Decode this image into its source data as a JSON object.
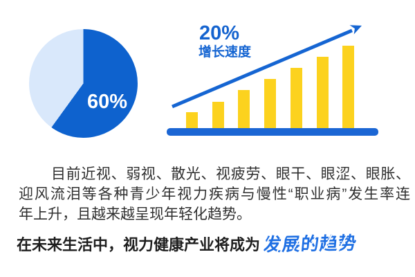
{
  "colors": {
    "pie_main": "#0e62ce",
    "pie_rest": "#d9e8fb",
    "bar_yellow": "#fcd21e",
    "baseline_blue": "#1b66d4",
    "arrow_blue": "#1565d2",
    "rate_text_blue": "#1463cf",
    "headline_black": "#1d1d1d",
    "highlight_blue": "#1e6fe3",
    "paragraph_gray": "#2f2f2f"
  },
  "chart_data": [
    {
      "type": "pie",
      "title": "",
      "slices": [
        {
          "label": "60%",
          "value": 60,
          "color": "#0e62ce"
        },
        {
          "label": "",
          "value": 40,
          "color": "#d9e8fb"
        }
      ],
      "start_angle_deg": 0,
      "direction": "clockwise",
      "annotations": [
        "60%"
      ],
      "legend": "none"
    },
    {
      "type": "bar",
      "title": "",
      "categories": [
        "",
        "",
        "",
        "",
        "",
        "",
        ""
      ],
      "values": [
        23,
        38,
        55,
        71,
        87,
        103,
        119
      ],
      "values_note": "bars are unlabeled; values are relative pixel heights rising linearly",
      "bar_color": "#fcd21e",
      "baseline_color": "#1b66d4",
      "trend_arrow": true,
      "annotations": [
        "20%",
        "增长速度"
      ],
      "axes": "none (decorative baseline only)",
      "grid": false,
      "legend": "none"
    }
  ],
  "paragraph": {
    "lines": [
      "目前近视、弱视、散光、视疲劳、眼干、眼涩、眼胀、",
      "迎风流泪等各种青少年视力疾病与慢性“职业病”发生率连",
      "年上升，且越来越呈现年轻化趋势。"
    ]
  },
  "headline": {
    "prefix": "在未来生活中，视力健康产业将成为",
    "highlight": "发展的趋势"
  }
}
